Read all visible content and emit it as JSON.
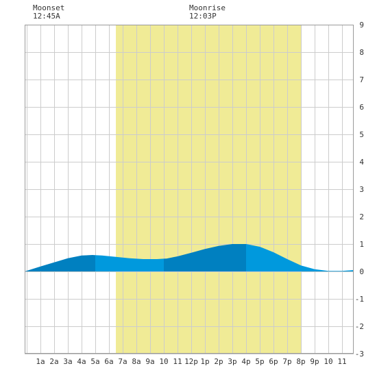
{
  "annotations": {
    "moonset": {
      "label": "Moonset",
      "time": "12:45A"
    },
    "moonrise": {
      "label": "Moonrise",
      "time": "12:03P"
    }
  },
  "chart_data": {
    "type": "area",
    "x_unit": "hour of day",
    "xlim": [
      -0.15,
      23.85
    ],
    "ylim": [
      -3,
      9
    ],
    "y_ticks": [
      -3,
      -2,
      -1,
      0,
      1,
      2,
      3,
      4,
      5,
      6,
      7,
      8,
      9
    ],
    "x_ticks": [
      {
        "x": 1,
        "label": "1a"
      },
      {
        "x": 2,
        "label": "2a"
      },
      {
        "x": 3,
        "label": "3a"
      },
      {
        "x": 4,
        "label": "4a"
      },
      {
        "x": 5,
        "label": "5a"
      },
      {
        "x": 6,
        "label": "6a"
      },
      {
        "x": 7,
        "label": "7a"
      },
      {
        "x": 8,
        "label": "8a"
      },
      {
        "x": 9,
        "label": "9a"
      },
      {
        "x": 10,
        "label": "10"
      },
      {
        "x": 11,
        "label": "11"
      },
      {
        "x": 12,
        "label": "12p"
      },
      {
        "x": 13,
        "label": "1p"
      },
      {
        "x": 14,
        "label": "2p"
      },
      {
        "x": 15,
        "label": "3p"
      },
      {
        "x": 16,
        "label": "4p"
      },
      {
        "x": 17,
        "label": "5p"
      },
      {
        "x": 18,
        "label": "6p"
      },
      {
        "x": 19,
        "label": "7p"
      },
      {
        "x": 20,
        "label": "8p"
      },
      {
        "x": 21,
        "label": "9p"
      },
      {
        "x": 22,
        "label": "10"
      },
      {
        "x": 23,
        "label": "11"
      }
    ],
    "grid": true,
    "daylight": {
      "start": 6.5,
      "end": 20.0
    },
    "moonset_x": 0.75,
    "moonrise_x": 12.05,
    "band_boundaries": [
      5.0,
      10.0,
      16.0
    ],
    "series": [
      {
        "x": [
          -0.15,
          1,
          2,
          3,
          4,
          4.8,
          5.5,
          6.5,
          7.5,
          8.5,
          9.5,
          10.2,
          11,
          12,
          13,
          14,
          15,
          16,
          17,
          18,
          19,
          20,
          21,
          22,
          23,
          23.85
        ],
        "y": [
          0.0,
          0.18,
          0.33,
          0.48,
          0.58,
          0.6,
          0.58,
          0.53,
          0.48,
          0.45,
          0.45,
          0.47,
          0.55,
          0.68,
          0.82,
          0.93,
          1.0,
          1.0,
          0.9,
          0.7,
          0.45,
          0.22,
          0.08,
          0.02,
          0.02,
          0.05
        ],
        "colors": [
          "#0080c0",
          "#0099dd"
        ]
      }
    ],
    "colors": {
      "daylight": "#f0eb96",
      "grid": "#cccccc",
      "border": "#999999",
      "dark_band": "#0080c0",
      "light_band": "#0099dd"
    }
  }
}
